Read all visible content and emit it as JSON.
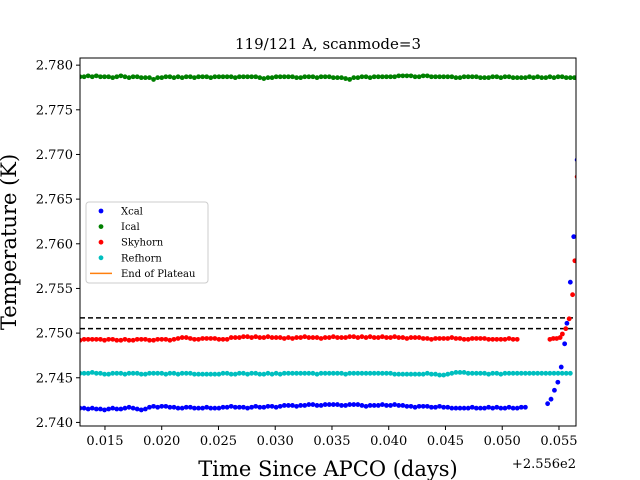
{
  "chart_data": {
    "type": "scatter",
    "title": "119/121 A, scanmode=3",
    "xlabel": "Time Since APCO (days)",
    "ylabel": "Temperature (K)",
    "x_offset_label": "+2.556e2",
    "x_offset": 255.6,
    "xlim": [
      0.0128,
      0.0565
    ],
    "ylim": [
      2.7396,
      2.7808
    ],
    "x_ticks": [
      0.015,
      0.02,
      0.025,
      0.03,
      0.035,
      0.04,
      0.045,
      0.05,
      0.055
    ],
    "x_tick_labels": [
      "0.015",
      "0.020",
      "0.025",
      "0.030",
      "0.035",
      "0.040",
      "0.045",
      "0.050",
      "0.055"
    ],
    "y_ticks": [
      2.74,
      2.745,
      2.75,
      2.755,
      2.76,
      2.765,
      2.77,
      2.775,
      2.78
    ],
    "y_tick_labels": [
      "2.740",
      "2.745",
      "2.750",
      "2.755",
      "2.760",
      "2.765",
      "2.770",
      "2.775",
      "2.780"
    ],
    "grid": false,
    "legend_position": "center-left",
    "sampling": {
      "x_start": 0.0128,
      "x_step": 0.00036
    },
    "series": [
      {
        "name": "Xcal",
        "color": "#0000ff",
        "values": [
          2.7416,
          2.7416,
          2.7415,
          2.7416,
          2.7415,
          2.7415,
          2.7414,
          2.7415,
          2.7416,
          2.7415,
          2.7415,
          2.7416,
          2.7417,
          2.7416,
          2.7415,
          2.7414,
          2.7415,
          2.7417,
          2.7418,
          2.7417,
          2.7418,
          2.7418,
          2.7417,
          2.7417,
          2.7416,
          2.7416,
          2.7417,
          2.7417,
          2.7416,
          2.7416,
          2.7416,
          2.7417,
          2.7416,
          2.7416,
          2.7416,
          2.7417,
          2.7417,
          2.7418,
          2.7417,
          2.7417,
          2.7417,
          2.7416,
          2.7417,
          2.7418,
          2.7417,
          2.7417,
          2.7418,
          2.7418,
          2.7417,
          2.7418,
          2.7419,
          2.7419,
          2.7419,
          2.7418,
          2.7419,
          2.7419,
          2.742,
          2.742,
          2.7419,
          2.7419,
          2.742,
          2.742,
          2.742,
          2.742,
          2.7419,
          2.7419,
          2.742,
          2.742,
          2.742,
          2.7419,
          2.7418,
          2.7419,
          2.7419,
          2.7419,
          2.742,
          2.7419,
          2.7419,
          2.742,
          2.7419,
          2.7419,
          2.7418,
          2.7418,
          2.7417,
          2.7418,
          2.7418,
          2.7418,
          2.7417,
          2.7417,
          2.7418,
          2.7417,
          2.7417,
          2.7416,
          2.7416,
          2.7416,
          2.7416,
          2.7416,
          2.7417,
          2.7416,
          2.7416,
          2.7416,
          2.7417,
          2.7416,
          2.7417,
          2.7416,
          2.7416,
          2.7417,
          2.7416,
          2.7416,
          2.7417,
          2.7417,
          2.7421,
          2.7426,
          2.7436,
          2.7445,
          2.7462,
          2.7488,
          2.7511,
          2.7557,
          2.7608,
          2.7694
        ],
        "x_overrides": {
          "110": 0.054,
          "111": 0.0543,
          "112": 0.0546,
          "113": 0.0549,
          "114": 0.0552,
          "115": 0.0555,
          "116": 0.0557,
          "117": 0.056,
          "118": 0.0563,
          "119": 0.0566
        }
      },
      {
        "name": "Ical",
        "color": "#008000",
        "values": [
          2.7787,
          2.7787,
          2.7788,
          2.7787,
          2.7788,
          2.7787,
          2.7787,
          2.7787,
          2.7786,
          2.7787,
          2.7788,
          2.7787,
          2.7786,
          2.7787,
          2.7787,
          2.7786,
          2.7786,
          2.7786,
          2.7784,
          2.7786,
          2.7786,
          2.7787,
          2.7787,
          2.7786,
          2.7787,
          2.7786,
          2.7787,
          2.7787,
          2.7786,
          2.7787,
          2.7787,
          2.7787,
          2.7786,
          2.7787,
          2.7787,
          2.7787,
          2.7787,
          2.7787,
          2.7786,
          2.7787,
          2.7787,
          2.7787,
          2.7787,
          2.7787,
          2.7786,
          2.7785,
          2.7786,
          2.7786,
          2.7787,
          2.7787,
          2.7787,
          2.7787,
          2.7787,
          2.7786,
          2.7786,
          2.7787,
          2.7787,
          2.7787,
          2.7786,
          2.7787,
          2.7787,
          2.7787,
          2.7786,
          2.7786,
          2.7786,
          2.7785,
          2.7784,
          2.7786,
          2.7786,
          2.7787,
          2.7787,
          2.7786,
          2.7787,
          2.7787,
          2.7787,
          2.7787,
          2.7787,
          2.7787,
          2.7788,
          2.7788,
          2.7788,
          2.7788,
          2.7787,
          2.7787,
          2.7788,
          2.7788,
          2.7787,
          2.7787,
          2.7787,
          2.7787,
          2.7787,
          2.7787,
          2.7786,
          2.7786,
          2.7787,
          2.7787,
          2.7787,
          2.7787,
          2.7786,
          2.7786,
          2.7786,
          2.7787,
          2.7787,
          2.7786,
          2.7787,
          2.7787,
          2.7786,
          2.7786,
          2.7786,
          2.7786,
          2.7787,
          2.7786,
          2.7787,
          2.7786,
          2.7786,
          2.7787,
          2.7786,
          2.7787,
          2.7787,
          2.7786,
          2.7786,
          2.7786
        ]
      },
      {
        "name": "Skyhorn",
        "color": "#ff0000",
        "values": [
          2.7492,
          2.7493,
          2.7493,
          2.7493,
          2.7493,
          2.7493,
          2.7492,
          2.7493,
          2.7493,
          2.7492,
          2.7492,
          2.7493,
          2.7492,
          2.7492,
          2.7493,
          2.7493,
          2.7493,
          2.7492,
          2.7492,
          2.7493,
          2.7493,
          2.7493,
          2.7492,
          2.7493,
          2.7494,
          2.7495,
          2.7495,
          2.7494,
          2.7493,
          2.7493,
          2.7494,
          2.7494,
          2.7494,
          2.7494,
          2.7493,
          2.7493,
          2.7493,
          2.7495,
          2.7495,
          2.7495,
          2.7496,
          2.7496,
          2.7495,
          2.7496,
          2.7495,
          2.7495,
          2.7496,
          2.7495,
          2.7495,
          2.7495,
          2.7494,
          2.7495,
          2.7494,
          2.7495,
          2.7495,
          2.7496,
          2.7495,
          2.7495,
          2.7495,
          2.7494,
          2.7495,
          2.7495,
          2.7496,
          2.7495,
          2.7495,
          2.7495,
          2.7496,
          2.7496,
          2.7495,
          2.7496,
          2.7495,
          2.7496,
          2.7495,
          2.7495,
          2.7496,
          2.7495,
          2.7495,
          2.7496,
          2.7495,
          2.7495,
          2.7494,
          2.7495,
          2.7495,
          2.7495,
          2.7494,
          2.7494,
          2.7493,
          2.7494,
          2.7494,
          2.7494,
          2.7494,
          2.7495,
          2.7494,
          2.7494,
          2.7493,
          2.7493,
          2.7494,
          2.7494,
          2.7494,
          2.7494,
          2.7493,
          2.7493,
          2.7493,
          2.7493,
          2.7493,
          2.7494,
          2.7493,
          2.7493,
          2.7493,
          2.7494,
          2.7494,
          2.7495,
          2.7499,
          2.7505,
          2.7516,
          2.7543,
          2.7581,
          2.7675
        ],
        "x_overrides": {
          "108": 0.0542,
          "109": 0.0545,
          "110": 0.0548,
          "111": 0.0551,
          "112": 0.0553,
          "113": 0.0556,
          "114": 0.0559,
          "115": 0.0562,
          "116": 0.0564,
          "117": 0.0566
        }
      },
      {
        "name": "Refhorn",
        "color": "#00bfbf",
        "values": [
          2.7455,
          2.7455,
          2.7455,
          2.7456,
          2.7455,
          2.7455,
          2.7454,
          2.7454,
          2.7455,
          2.7455,
          2.7455,
          2.7454,
          2.7455,
          2.7455,
          2.7455,
          2.7454,
          2.7454,
          2.7455,
          2.7455,
          2.7455,
          2.7455,
          2.7454,
          2.7455,
          2.7455,
          2.7454,
          2.7455,
          2.7455,
          2.7455,
          2.7454,
          2.7454,
          2.7454,
          2.7454,
          2.7454,
          2.7454,
          2.7454,
          2.7455,
          2.7455,
          2.7454,
          2.7454,
          2.7455,
          2.7455,
          2.7454,
          2.7455,
          2.7455,
          2.7454,
          2.7454,
          2.7455,
          2.7454,
          2.7455,
          2.7454,
          2.7455,
          2.7455,
          2.7455,
          2.7455,
          2.7455,
          2.7455,
          2.7455,
          2.7455,
          2.7454,
          2.7455,
          2.7455,
          2.7455,
          2.7455,
          2.7455,
          2.7455,
          2.7454,
          2.7455,
          2.7455,
          2.7455,
          2.7455,
          2.7455,
          2.7455,
          2.7455,
          2.7455,
          2.7455,
          2.7455,
          2.7455,
          2.7454,
          2.7454,
          2.7454,
          2.7454,
          2.7454,
          2.7454,
          2.7454,
          2.7454,
          2.7455,
          2.7454,
          2.7454,
          2.7453,
          2.7453,
          2.7454,
          2.7455,
          2.7456,
          2.7456,
          2.7456,
          2.7455,
          2.7455,
          2.7455,
          2.7455,
          2.7455,
          2.7454,
          2.7455,
          2.7455,
          2.7454,
          2.7455,
          2.7455,
          2.7455,
          2.7455,
          2.7455,
          2.7455,
          2.7455,
          2.7455,
          2.7455,
          2.7455,
          2.7455,
          2.7455,
          2.7455,
          2.7455,
          2.7455,
          2.7455,
          2.7455
        ]
      },
      {
        "name": "End of Plateau",
        "color": "#ff7f0e",
        "values": []
      }
    ],
    "reference_lines": [
      {
        "y": 2.7517,
        "style": "dashed",
        "color": "#000000"
      },
      {
        "y": 2.7505,
        "style": "dashed",
        "color": "#000000"
      }
    ]
  }
}
